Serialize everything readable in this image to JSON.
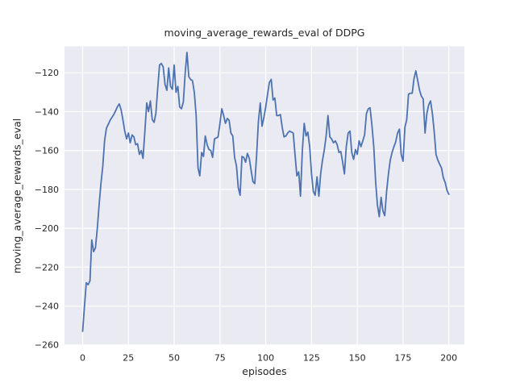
{
  "chart_data": {
    "type": "line",
    "title": "moving_average_rewards_eval of DDPG",
    "xlabel": "episodes",
    "ylabel": "moving_average_rewards_eval",
    "xlim": [
      -9.9,
      208.5
    ],
    "ylim": [
      -260.2,
      -106.4
    ],
    "x_ticks": [
      0,
      25,
      50,
      75,
      100,
      125,
      150,
      175,
      200
    ],
    "y_ticks": [
      -120,
      -140,
      -160,
      -180,
      -200,
      -220,
      -240,
      -260
    ],
    "grid": true,
    "legend": null,
    "plot_bg": "#eaeaf2",
    "grid_color": "#ffffff",
    "text_color": "#262626",
    "series": [
      {
        "name": "moving_average_rewards_eval",
        "color": "#4c72b0",
        "x_start": 0,
        "x_step": 1,
        "y": [
          -253,
          -240,
          -228,
          -229,
          -227,
          -206,
          -212,
          -210,
          -200,
          -188,
          -177,
          -168,
          -155,
          -148.5,
          -146.5,
          -144.5,
          -143,
          -141.5,
          -139.5,
          -137.5,
          -136,
          -139,
          -144,
          -150,
          -154,
          -151,
          -156,
          -152,
          -153,
          -157,
          -156.5,
          -162,
          -160,
          -164,
          -150,
          -135.5,
          -140,
          -134.5,
          -144,
          -145.5,
          -141,
          -128,
          -116,
          -115.2,
          -117,
          -126,
          -129,
          -117.5,
          -127,
          -128.5,
          -116,
          -130,
          -127,
          -137.5,
          -138.5,
          -135,
          -120,
          -109.5,
          -122,
          -123.5,
          -124,
          -130,
          -142,
          -169,
          -173,
          -161,
          -163,
          -152.5,
          -157,
          -159.5,
          -160,
          -163.5,
          -154,
          -153.5,
          -153,
          -146,
          -138.5,
          -142,
          -146,
          -143.5,
          -144.5,
          -151,
          -152.5,
          -163.5,
          -168,
          -179,
          -183,
          -163,
          -163.5,
          -166,
          -161.5,
          -164,
          -170,
          -176,
          -177,
          -163,
          -145,
          -135.5,
          -147.5,
          -143,
          -137.5,
          -131,
          -125,
          -123.4,
          -134,
          -133,
          -142,
          -142,
          -141.5,
          -148,
          -153,
          -152.5,
          -151,
          -150,
          -150.5,
          -151,
          -162,
          -173,
          -171,
          -183.5,
          -160,
          -146,
          -152.5,
          -150.5,
          -158,
          -172,
          -181,
          -183,
          -173.5,
          -183.5,
          -172,
          -165,
          -159.5,
          -152.5,
          -142,
          -153,
          -154,
          -156,
          -155,
          -157,
          -161,
          -160.5,
          -166,
          -172,
          -158,
          -151,
          -150,
          -161,
          -164.5,
          -159.5,
          -162,
          -155,
          -158,
          -155,
          -152,
          -141,
          -138.5,
          -138,
          -147,
          -158,
          -176,
          -188,
          -194,
          -184,
          -191,
          -193.5,
          -181,
          -172,
          -165,
          -161,
          -158,
          -155.5,
          -151,
          -149,
          -162,
          -165.5,
          -148,
          -144,
          -131,
          -130.5,
          -130.5,
          -123,
          -119,
          -124,
          -129,
          -132,
          -133.5,
          -151,
          -141,
          -136.5,
          -134.5,
          -141,
          -150,
          -162,
          -165,
          -167,
          -169,
          -174,
          -176.5,
          -180.5,
          -182.5
        ]
      }
    ]
  }
}
